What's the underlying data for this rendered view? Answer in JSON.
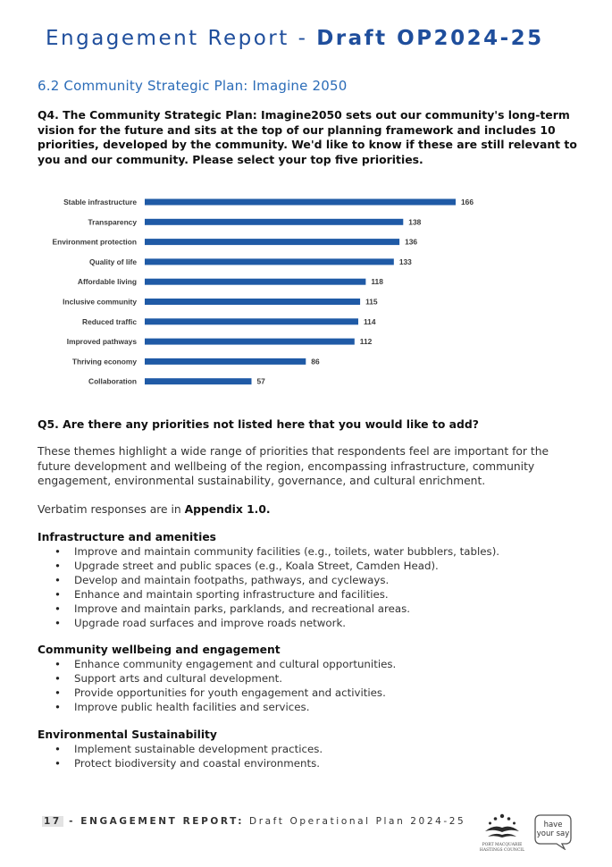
{
  "header": {
    "title_light": "Engagement Report - ",
    "title_bold": "Draft OP2024-25"
  },
  "section_title": "6.2 Community Strategic Plan: Imagine 2050",
  "q4": "Q4. The Community Strategic Plan: Imagine2050 sets out our community's long-term vision for the future and sits at the top of our planning framework and includes 10 priorities, developed by the community. We'd like to know if these are still relevant to you and our community. Please select your top five priorities.",
  "chart_data": {
    "type": "bar",
    "orientation": "horizontal",
    "categories": [
      "Stable infrastructure",
      "Transparency",
      "Environment protection",
      "Quality of life",
      "Affordable living",
      "Inclusive community",
      "Reduced traffic",
      "Improved pathways",
      "Thriving economy",
      "Collaboration"
    ],
    "values": [
      166,
      138,
      136,
      133,
      118,
      115,
      114,
      112,
      86,
      57
    ],
    "title": "",
    "xlabel": "",
    "ylabel": "",
    "xlim": [
      0,
      166
    ],
    "grid": false,
    "legend": "none",
    "bar_color": "#1f5aa6"
  },
  "q5": "Q5. Are there any priorities not listed here that you would like to add?",
  "paragraph": "These themes highlight a wide range of priorities that respondents feel are important for the future development and wellbeing of the region, encompassing infrastructure, community engagement, environmental sustainability, governance, and cultural enrichment.",
  "verbatim": {
    "prefix": "Verbatim responses are in ",
    "link": "Appendix 1.0."
  },
  "groups": [
    {
      "heading": "Infrastructure and amenities",
      "items": [
        "Improve and maintain community facilities (e.g., toilets, water bubblers, tables).",
        "Upgrade street and public spaces (e.g., Koala Street, Camden Head).",
        "Develop and maintain footpaths, pathways, and cycleways.",
        "Enhance and maintain sporting infrastructure and facilities.",
        "Improve and maintain parks, parklands, and recreational areas.",
        "Upgrade road surfaces and improve roads network."
      ]
    },
    {
      "heading": "Community wellbeing and engagement",
      "items": [
        "Enhance community engagement and cultural opportunities.",
        "Support arts and cultural development.",
        "Provide opportunities for youth engagement and activities.",
        "Improve public health facilities and services."
      ]
    },
    {
      "heading": "Environmental Sustainability",
      "items": [
        "Implement sustainable development practices.",
        "Protect biodiversity and coastal environments."
      ]
    }
  ],
  "footer": {
    "page": "17",
    "sep": " - ",
    "label": "ENGAGEMENT REPORT:",
    "doc": " Draft Operational Plan 2024-25"
  },
  "logo": {
    "line1": "PORT MACQUARIE",
    "line2": "HASTINGS COUNCIL"
  },
  "badge": {
    "line1": "have",
    "line2": "your say"
  },
  "colors": {
    "brand_blue": "#1f4e9c",
    "section_blue": "#2b6cb8"
  }
}
